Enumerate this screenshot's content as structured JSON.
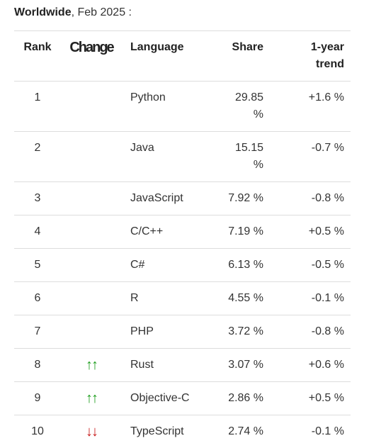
{
  "header": {
    "region": "Worldwide",
    "date": ", Feb 2025 :"
  },
  "table": {
    "columns": [
      "Rank",
      "Change",
      "Language",
      "Share",
      "1-year trend"
    ],
    "rows": [
      [
        "1",
        null,
        "Python",
        "29.85 %",
        "+1.6 %"
      ],
      [
        "2",
        null,
        "Java",
        "15.15 %",
        "-0.7 %"
      ],
      [
        "3",
        null,
        "JavaScript",
        "7.92 %",
        "-0.8 %"
      ],
      [
        "4",
        null,
        "C/C++",
        "7.19 %",
        "+0.5 %"
      ],
      [
        "5",
        null,
        "C#",
        "6.13 %",
        "-0.5 %"
      ],
      [
        "6",
        null,
        "R",
        "4.55 %",
        "-0.1 %"
      ],
      [
        "7",
        null,
        "PHP",
        "3.72 %",
        "-0.8 %"
      ],
      [
        "8",
        {
          "text": "↑↑",
          "color": "#1e9e1e"
        },
        "Rust",
        "3.07 %",
        "+0.6 %"
      ],
      [
        "9",
        {
          "text": "↑↑",
          "color": "#1e9e1e"
        },
        "Objective-C",
        "2.86 %",
        "+0.5 %"
      ],
      [
        "10",
        {
          "text": "↓↓",
          "color": "#c81e1e"
        },
        "TypeScript",
        "2.74 %",
        "-0.1 %"
      ]
    ]
  }
}
